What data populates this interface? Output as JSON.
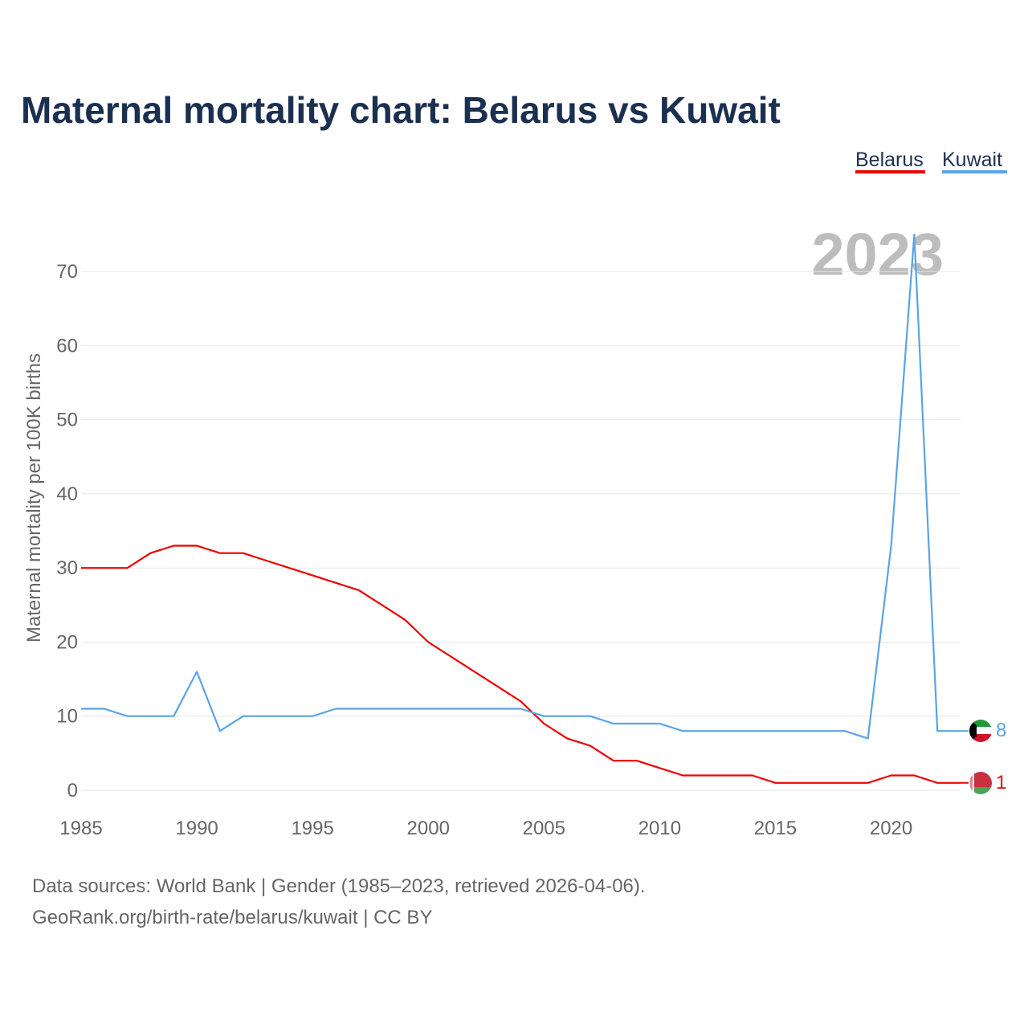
{
  "chart_data": {
    "type": "line",
    "title": "Maternal mortality chart: Belarus vs Kuwait",
    "ylabel": "Maternal mortality per 100K births",
    "xlabel": "",
    "xlim": [
      1985,
      2023
    ],
    "ylim": [
      0,
      75
    ],
    "yticks": [
      0,
      10,
      20,
      30,
      40,
      50,
      60,
      70
    ],
    "xticks": [
      1985,
      1990,
      1995,
      2000,
      2005,
      2010,
      2015,
      2020
    ],
    "highlight_year": "2023",
    "x": [
      1985,
      1986,
      1987,
      1988,
      1989,
      1990,
      1991,
      1992,
      1993,
      1994,
      1995,
      1996,
      1997,
      1998,
      1999,
      2000,
      2001,
      2002,
      2003,
      2004,
      2005,
      2006,
      2007,
      2008,
      2009,
      2010,
      2011,
      2012,
      2013,
      2014,
      2015,
      2016,
      2017,
      2018,
      2019,
      2020,
      2021,
      2022,
      2023
    ],
    "series": [
      {
        "name": "Belarus",
        "color": "#ee0000",
        "values": [
          30,
          30,
          30,
          32,
          33,
          33,
          32,
          32,
          31,
          30,
          29,
          28,
          27,
          25,
          23,
          20,
          18,
          16,
          14,
          12,
          9,
          7,
          6,
          4,
          4,
          3,
          2,
          2,
          2,
          2,
          1,
          1,
          1,
          1,
          1,
          2,
          2,
          1,
          1
        ],
        "end_label": "1",
        "flag": "belarus-flag-icon"
      },
      {
        "name": "Kuwait",
        "color": "#5ba3e6",
        "values": [
          11,
          11,
          10,
          10,
          10,
          16,
          8,
          10,
          10,
          10,
          10,
          11,
          11,
          11,
          11,
          11,
          11,
          11,
          11,
          11,
          10,
          10,
          10,
          9,
          9,
          9,
          8,
          8,
          8,
          8,
          8,
          8,
          8,
          8,
          7,
          33,
          75,
          8,
          8
        ],
        "end_label": "8",
        "flag": "kuwait-flag-icon"
      }
    ],
    "legend_position": "top-right"
  },
  "footer": {
    "line1": "Data sources: World Bank | Gender (1985–2023, retrieved 2026-04-06).",
    "line2": "GeoRank.org/birth-rate/belarus/kuwait | CC BY"
  }
}
